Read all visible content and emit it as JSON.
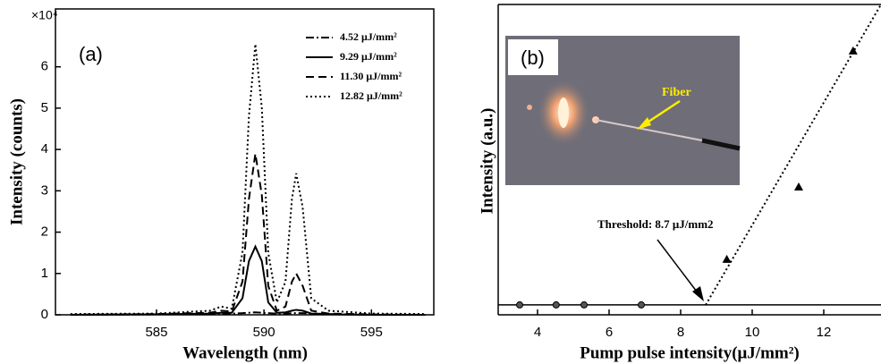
{
  "chart_data": [
    {
      "type": "line",
      "panel_label": "(a)",
      "multiplier": "×10⁴",
      "x_label": "Wavelength (nm)",
      "y_label": "Intensity (counts)",
      "xlim": [
        580.3,
        597.9
      ],
      "xticks": [
        585,
        590,
        595
      ],
      "ylim": [
        0,
        7.4
      ],
      "yticks": [
        0,
        1,
        2,
        3,
        4,
        5,
        6
      ],
      "x": [
        581,
        585,
        587.5,
        588,
        588.5,
        589,
        589.3,
        589.6,
        589.9,
        590.2,
        590.6,
        591,
        591.3,
        591.5,
        591.8,
        592.2,
        593,
        595,
        597.5
      ],
      "series": [
        {
          "name": "4.52 μJ/mm²",
          "color": "#000000",
          "dash": "dashdot",
          "values": [
            0,
            0.01,
            0.02,
            0.03,
            0.03,
            0.04,
            0.05,
            0.06,
            0.05,
            0.04,
            0.03,
            0.03,
            0.04,
            0.04,
            0.04,
            0.03,
            0.02,
            0,
            0
          ]
        },
        {
          "name": "9.29 μJ/mm²",
          "color": "#000000",
          "dash": "solid",
          "values": [
            0,
            0.01,
            0.03,
            0.05,
            0.05,
            0.4,
            1.3,
            1.65,
            1.3,
            0.3,
            0.05,
            0.06,
            0.1,
            0.12,
            0.1,
            0.03,
            0.01,
            0,
            0
          ]
        },
        {
          "name": "11.30 μJ/mm²",
          "color": "#000000",
          "dash": "dashed",
          "values": [
            0,
            0.02,
            0.05,
            0.1,
            0.08,
            0.8,
            2.8,
            3.9,
            2.9,
            0.7,
            0.1,
            0.2,
            0.8,
            1.0,
            0.7,
            0.1,
            0.03,
            0.01,
            0
          ]
        },
        {
          "name": "12.82 μJ/mm²",
          "color": "#000000",
          "dash": "dotted",
          "values": [
            0.02,
            0.03,
            0.1,
            0.2,
            0.15,
            1.5,
            4.8,
            6.55,
            5.0,
            1.5,
            0.3,
            0.8,
            2.8,
            3.42,
            2.6,
            0.4,
            0.1,
            0.03,
            0.02
          ]
        }
      ]
    },
    {
      "type": "scatter",
      "panel_label": "(b)",
      "x_label": "Pump pulse intensity(μJ/mm²)",
      "y_label": "Intensity (a.u.)",
      "xlim": [
        2.9,
        13.6
      ],
      "xticks": [
        4,
        6,
        8,
        10,
        12
      ],
      "ylim": [
        -0.37,
        11.2
      ],
      "series": [
        {
          "marker": "circle",
          "color": "#000000",
          "x": [
            3.5,
            4.52,
            5.3,
            6.9
          ],
          "values": [
            0,
            0,
            0,
            0
          ]
        },
        {
          "marker": "triangle",
          "color": "#000000",
          "x": [
            9.29,
            11.3,
            12.82
          ],
          "values": [
            1.7,
            4.4,
            9.47
          ]
        }
      ],
      "reference_line": 0,
      "fit_line": {
        "x": [
          8.7,
          13.6
        ],
        "values": [
          0,
          11.2
        ]
      },
      "annotation": "Threshold: 8.7 μJ/mm2",
      "inset_label": "Fiber"
    }
  ]
}
